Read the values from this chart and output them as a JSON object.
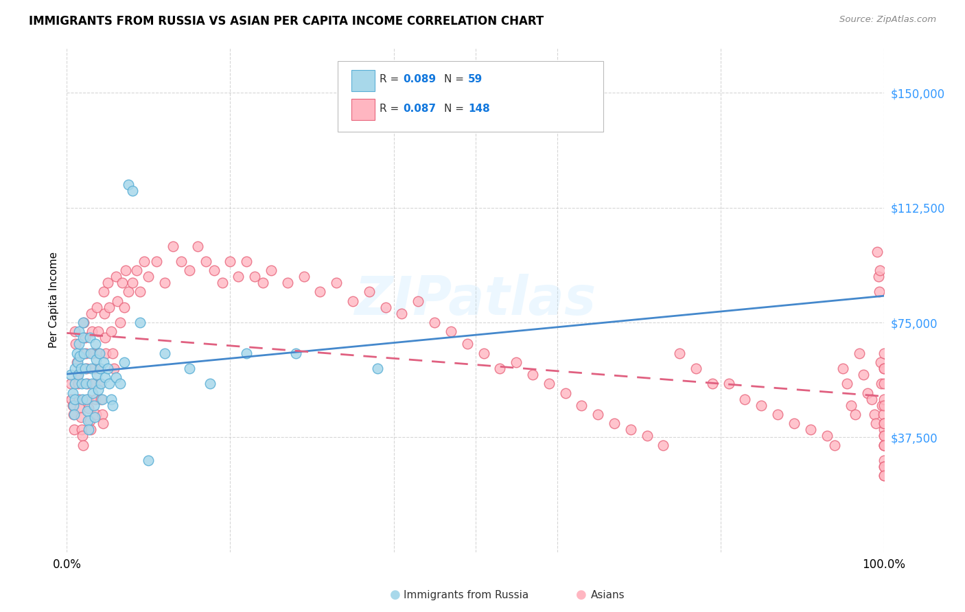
{
  "title": "IMMIGRANTS FROM RUSSIA VS ASIAN PER CAPITA INCOME CORRELATION CHART",
  "source": "Source: ZipAtlas.com",
  "ylabel": "Per Capita Income",
  "ylim": [
    0,
    165000
  ],
  "xlim": [
    0,
    1.0
  ],
  "color_russia": "#a8d8ea",
  "color_russia_edge": "#5aafd6",
  "color_asia": "#ffb6c1",
  "color_asia_edge": "#e8637a",
  "color_trendline_russia": "#4488cc",
  "color_trendline_asia": "#e06080",
  "russia_R": "0.089",
  "russia_N": "59",
  "asia_R": "0.087",
  "asia_N": "148",
  "russia_x": [
    0.005,
    0.007,
    0.008,
    0.009,
    0.01,
    0.01,
    0.01,
    0.012,
    0.013,
    0.014,
    0.015,
    0.015,
    0.016,
    0.017,
    0.018,
    0.019,
    0.02,
    0.02,
    0.021,
    0.022,
    0.023,
    0.024,
    0.025,
    0.026,
    0.027,
    0.028,
    0.029,
    0.03,
    0.031,
    0.032,
    0.033,
    0.034,
    0.035,
    0.036,
    0.037,
    0.038,
    0.04,
    0.041,
    0.042,
    0.043,
    0.045,
    0.047,
    0.05,
    0.052,
    0.054,
    0.056,
    0.06,
    0.065,
    0.07,
    0.075,
    0.08,
    0.09,
    0.1,
    0.12,
    0.15,
    0.175,
    0.22,
    0.28,
    0.38
  ],
  "russia_y": [
    58000,
    52000,
    48000,
    45000,
    60000,
    55000,
    50000,
    65000,
    62000,
    58000,
    72000,
    68000,
    64000,
    60000,
    55000,
    50000,
    75000,
    70000,
    65000,
    60000,
    55000,
    50000,
    46000,
    43000,
    40000,
    70000,
    65000,
    60000,
    55000,
    52000,
    48000,
    44000,
    68000,
    63000,
    58000,
    53000,
    65000,
    60000,
    55000,
    50000,
    62000,
    57000,
    60000,
    55000,
    50000,
    48000,
    57000,
    55000,
    62000,
    120000,
    118000,
    75000,
    30000,
    65000,
    60000,
    55000,
    65000,
    65000,
    60000
  ],
  "asia_x": [
    0.005,
    0.006,
    0.007,
    0.008,
    0.009,
    0.01,
    0.011,
    0.012,
    0.013,
    0.014,
    0.015,
    0.016,
    0.017,
    0.018,
    0.019,
    0.02,
    0.021,
    0.022,
    0.023,
    0.024,
    0.025,
    0.026,
    0.027,
    0.028,
    0.029,
    0.03,
    0.031,
    0.032,
    0.033,
    0.034,
    0.035,
    0.036,
    0.037,
    0.038,
    0.039,
    0.04,
    0.041,
    0.042,
    0.043,
    0.044,
    0.045,
    0.046,
    0.047,
    0.048,
    0.05,
    0.052,
    0.054,
    0.056,
    0.058,
    0.06,
    0.062,
    0.065,
    0.068,
    0.07,
    0.072,
    0.075,
    0.08,
    0.085,
    0.09,
    0.095,
    0.1,
    0.11,
    0.12,
    0.13,
    0.14,
    0.15,
    0.16,
    0.17,
    0.18,
    0.19,
    0.2,
    0.21,
    0.22,
    0.23,
    0.24,
    0.25,
    0.27,
    0.29,
    0.31,
    0.33,
    0.35,
    0.37,
    0.39,
    0.41,
    0.43,
    0.45,
    0.47,
    0.49,
    0.51,
    0.53,
    0.55,
    0.57,
    0.59,
    0.61,
    0.63,
    0.65,
    0.67,
    0.69,
    0.71,
    0.73,
    0.75,
    0.77,
    0.79,
    0.81,
    0.83,
    0.85,
    0.87,
    0.89,
    0.91,
    0.93,
    0.94,
    0.95,
    0.955,
    0.96,
    0.965,
    0.97,
    0.975,
    0.98,
    0.985,
    0.988,
    0.99,
    0.992,
    0.993,
    0.994,
    0.995,
    0.996,
    0.997,
    0.998,
    0.999,
    1.0,
    1.0,
    1.0,
    1.0,
    1.0,
    1.0,
    1.0,
    1.0,
    1.0,
    1.0,
    1.0,
    1.0,
    1.0,
    1.0,
    1.0,
    1.0,
    1.0,
    1.0,
    1.0
  ],
  "asia_y": [
    55000,
    50000,
    48000,
    45000,
    40000,
    72000,
    68000,
    62000,
    58000,
    55000,
    50000,
    47000,
    44000,
    40000,
    38000,
    35000,
    75000,
    70000,
    65000,
    60000,
    55000,
    50000,
    47000,
    43000,
    40000,
    78000,
    72000,
    65000,
    60000,
    55000,
    50000,
    45000,
    80000,
    72000,
    65000,
    60000,
    55000,
    50000,
    45000,
    42000,
    85000,
    78000,
    70000,
    65000,
    88000,
    80000,
    72000,
    65000,
    60000,
    90000,
    82000,
    75000,
    88000,
    80000,
    92000,
    85000,
    88000,
    92000,
    85000,
    95000,
    90000,
    95000,
    88000,
    100000,
    95000,
    92000,
    100000,
    95000,
    92000,
    88000,
    95000,
    90000,
    95000,
    90000,
    88000,
    92000,
    88000,
    90000,
    85000,
    88000,
    82000,
    85000,
    80000,
    78000,
    82000,
    75000,
    72000,
    68000,
    65000,
    60000,
    62000,
    58000,
    55000,
    52000,
    48000,
    45000,
    42000,
    40000,
    38000,
    35000,
    65000,
    60000,
    55000,
    55000,
    50000,
    48000,
    45000,
    42000,
    40000,
    38000,
    35000,
    60000,
    55000,
    48000,
    45000,
    65000,
    58000,
    52000,
    50000,
    45000,
    42000,
    98000,
    90000,
    85000,
    92000,
    62000,
    55000,
    48000,
    45000,
    40000,
    35000,
    30000,
    60000,
    50000,
    42000,
    38000,
    35000,
    28000,
    25000,
    65000,
    55000,
    48000,
    42000,
    38000,
    35000,
    28000,
    25000,
    60000
  ]
}
